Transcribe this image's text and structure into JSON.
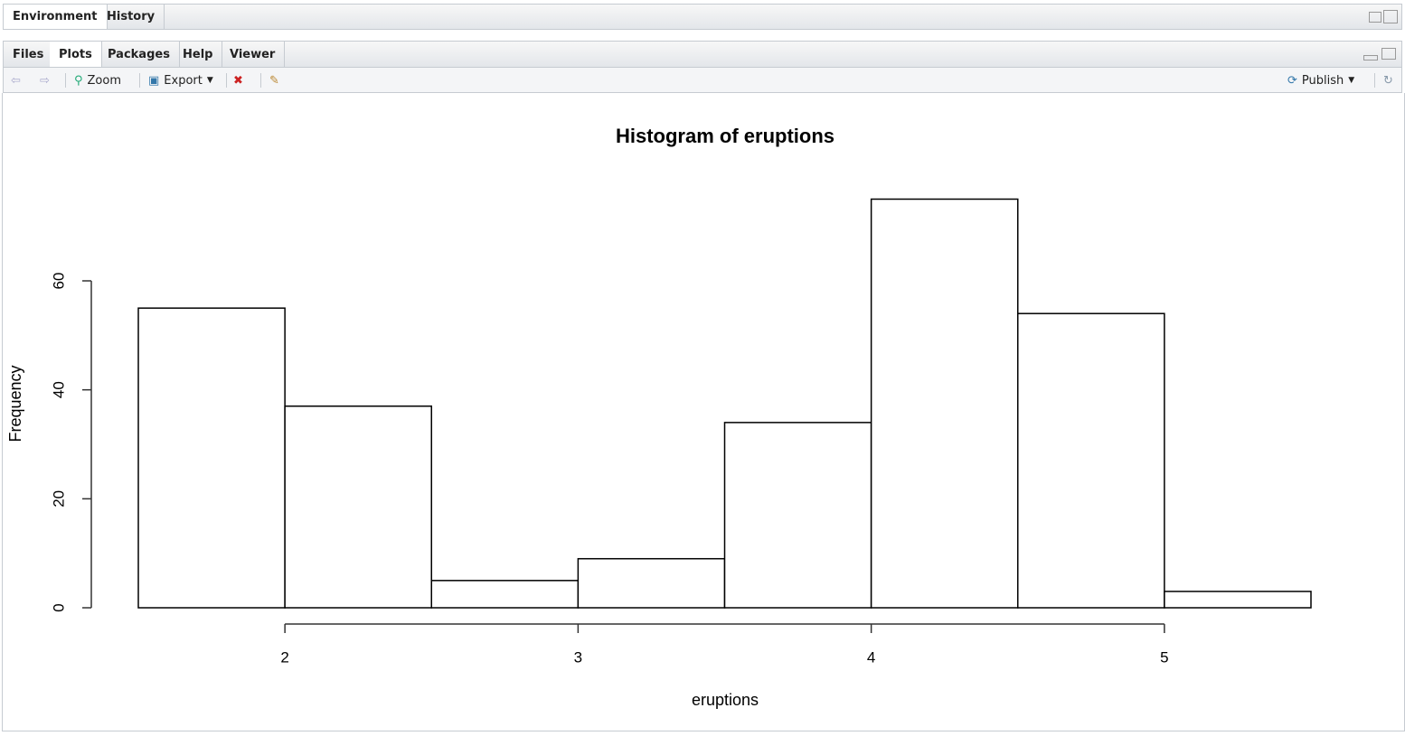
{
  "ui": {
    "top_tabs": [
      "Environment",
      "History"
    ],
    "tabs": [
      "Files",
      "Plots",
      "Packages",
      "Help",
      "Viewer"
    ],
    "toolbar": {
      "zoom": "Zoom",
      "export": "Export",
      "publish": "Publish"
    }
  },
  "chart_data": {
    "type": "histogram",
    "title": "Histogram of eruptions",
    "xlabel": "eruptions",
    "ylabel": "Frequency",
    "bins": [
      1.5,
      2,
      2.5,
      3,
      3.5,
      4,
      4.5,
      5,
      5.5
    ],
    "counts": [
      55,
      37,
      5,
      9,
      34,
      75,
      54,
      3
    ],
    "xlim": [
      1.5,
      5.5
    ],
    "ylim": [
      0,
      75
    ],
    "xticks": [
      2,
      3,
      4,
      5
    ],
    "yticks": [
      0,
      20,
      40,
      60
    ],
    "color": "#ffffff",
    "edgecolor": "#000000"
  }
}
